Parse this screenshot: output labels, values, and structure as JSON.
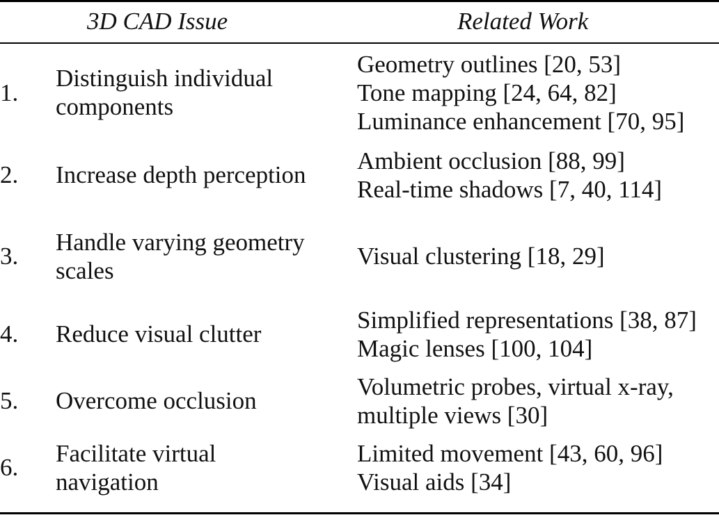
{
  "table": {
    "headers": {
      "issue": "3D CAD Issue",
      "work": "Related Work"
    },
    "rows": [
      {
        "number": "1.",
        "issue": [
          "Distinguish individual",
          "components"
        ],
        "work": [
          "Geometry outlines [20, 53]",
          "Tone mapping [24, 64, 82]",
          "Luminance enhancement [70, 95]"
        ]
      },
      {
        "number": "2.",
        "issue": [
          "Increase depth perception"
        ],
        "work": [
          "Ambient occlusion [88, 99]",
          "Real-time shadows [7, 40, 114]"
        ]
      },
      {
        "number": "3.",
        "issue": [
          "Handle varying geometry",
          "scales"
        ],
        "work": [
          "Visual clustering [18, 29]"
        ]
      },
      {
        "number": "4.",
        "issue": [
          "Reduce visual clutter"
        ],
        "work": [
          "Simplified representations [38, 87]",
          "Magic lenses [100, 104]"
        ]
      },
      {
        "number": "5.",
        "issue": [
          "Overcome occlusion"
        ],
        "work": [
          "Volumetric probes, virtual x-ray,",
          "multiple views [30]"
        ]
      },
      {
        "number": "6.",
        "issue": [
          "Facilitate virtual",
          "navigation"
        ],
        "work": [
          "Limited movement [43, 60, 96]",
          "Visual aids [34]"
        ]
      }
    ]
  }
}
